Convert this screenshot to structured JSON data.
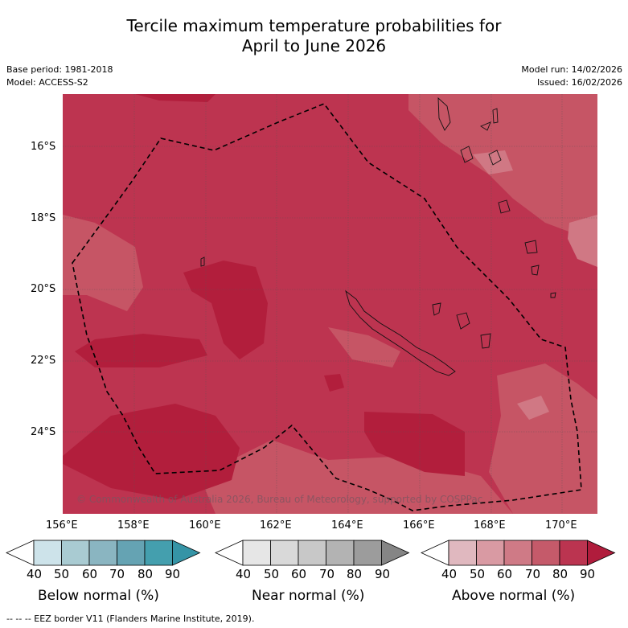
{
  "title_line1": "Tercile maximum temperature probabilities for",
  "title_line2": "April to June 2026",
  "base_period": "Base period: 1981-2018",
  "model": "Model: ACCESS-S2",
  "model_run": "Model run: 14/02/2026",
  "issued": "Issued: 16/02/2026",
  "lat_ticks": [
    "16°S",
    "18°S",
    "20°S",
    "22°S",
    "24°S"
  ],
  "lon_ticks": [
    "156°E",
    "158°E",
    "160°E",
    "162°E",
    "164°E",
    "166°E",
    "168°E",
    "170°E"
  ],
  "copyright": "© Commonwealth of Australia 2026, Bureau of Meteorology, supported by COSPPac",
  "colorbars": {
    "below": {
      "label": "Below normal (%)",
      "ticks": [
        "40",
        "50",
        "60",
        "70",
        "80",
        "90"
      ],
      "colors": [
        "#ffffff",
        "#cde3ea",
        "#a9cbd2",
        "#8ab5c1",
        "#65a3b3",
        "#449fae",
        "#3594a6"
      ]
    },
    "near": {
      "label": "Near normal (%)",
      "ticks": [
        "40",
        "50",
        "60",
        "70",
        "80",
        "90"
      ],
      "colors": [
        "#ffffff",
        "#e6e6e6",
        "#d9d9d9",
        "#c8c8c8",
        "#b3b3b3",
        "#9c9c9c",
        "#858585"
      ]
    },
    "above": {
      "label": "Above normal (%)",
      "ticks": [
        "40",
        "50",
        "60",
        "70",
        "80",
        "90"
      ],
      "colors": [
        "#ffffff",
        "#e0b8bf",
        "#d99aa3",
        "#cf7a86",
        "#c55a6a",
        "#bb3450",
        "#b01c3c"
      ]
    }
  },
  "footer": "-- -- -- EEZ border V11 (Flanders Marine Institute, 2019)."
}
